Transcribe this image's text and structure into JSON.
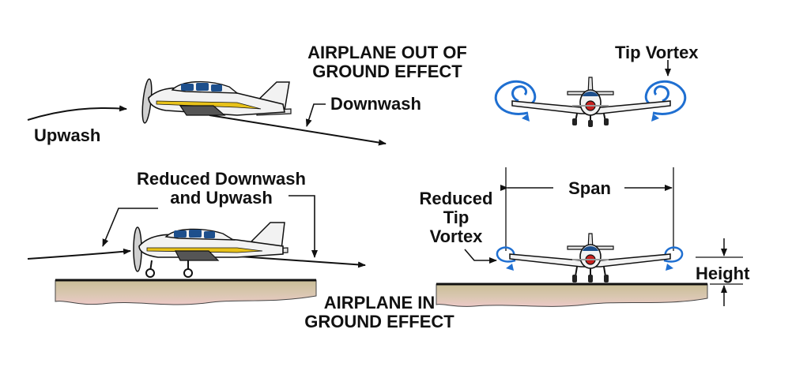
{
  "diagram": {
    "labels": {
      "out_title_line1": "AIRPLANE OUT OF",
      "out_title_line2": "GROUND EFFECT",
      "downwash": "Downwash",
      "upwash": "Upwash",
      "tip_vortex": "Tip Vortex",
      "reduced_downwash_line1": "Reduced Downwash",
      "reduced_downwash_line2": "and Upwash",
      "span": "Span",
      "reduced_tip_line1": "Reduced",
      "reduced_tip_line2": "Tip",
      "reduced_tip_line3": "Vortex",
      "height": "Height",
      "in_title_line1": "AIRPLANE IN",
      "in_title_line2": "GROUND EFFECT"
    },
    "colors": {
      "fuselage": "#f2f2f2",
      "stripe": "#e8c21a",
      "window": "#1d4f8c",
      "vortex": "#1f6fd1",
      "nose_red": "#c8201e",
      "ground_top": "#c9bd96",
      "ground_bottom": "#e8c4c2",
      "outline": "#111111"
    }
  }
}
